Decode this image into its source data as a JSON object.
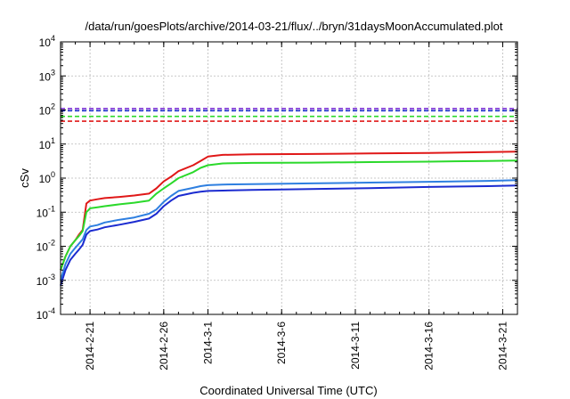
{
  "chart_data": {
    "type": "line",
    "title": "/data/run/goesPlots/archive/2014-03-21/flux/../bryn/31daysMoonAccumulated.plot",
    "xlabel": "Coordinated Universal Time (UTC)",
    "ylabel": "cSv",
    "yscale": "log",
    "ylim": [
      0.0001,
      10000
    ],
    "xlim": [
      "2014-02-19",
      "2014-03-22"
    ],
    "grid": true,
    "y_ticks": [
      {
        "base": "10",
        "exp": "-4",
        "value": 0.0001
      },
      {
        "base": "10",
        "exp": "-3",
        "value": 0.001
      },
      {
        "base": "10",
        "exp": "-2",
        "value": 0.01
      },
      {
        "base": "10",
        "exp": "-1",
        "value": 0.1
      },
      {
        "base": "10",
        "exp": "0",
        "value": 1
      },
      {
        "base": "10",
        "exp": "1",
        "value": 10
      },
      {
        "base": "10",
        "exp": "2",
        "value": 100
      },
      {
        "base": "10",
        "exp": "3",
        "value": 1000
      },
      {
        "base": "10",
        "exp": "4",
        "value": 10000
      }
    ],
    "x_ticks": [
      "2014-2-21",
      "2014-2-26",
      "2014-3-1",
      "2014-3-6",
      "2014-3-11",
      "2014-3-16",
      "2014-3-21"
    ],
    "x_tick_dates": [
      "2014-02-21",
      "2014-02-26",
      "2014-03-01",
      "2014-03-06",
      "2014-03-11",
      "2014-03-16",
      "2014-03-21"
    ],
    "thresholds": [
      {
        "color": "#7b2fd6",
        "value": 110
      },
      {
        "color": "#1b2bd0",
        "value": 95
      },
      {
        "color": "#2bd92b",
        "value": 65
      },
      {
        "color": "#e01818",
        "value": 47
      }
    ],
    "series": [
      {
        "color": "#e01818",
        "x": [
          "2014-02-19",
          "2014-02-19",
          "2014-02-19",
          "2014-02-20",
          "2014-02-20",
          "2014-02-20",
          "2014-02-20",
          "2014-02-21",
          "2014-02-21",
          "2014-02-22",
          "2014-02-23",
          "2014-02-24",
          "2014-02-25",
          "2014-02-25",
          "2014-02-26",
          "2014-02-26",
          "2014-02-27",
          "2014-02-28",
          "2014-02-28",
          "2014-03-01",
          "2014-03-02",
          "2014-03-04",
          "2014-03-08",
          "2014-03-12",
          "2014-03-16",
          "2014-03-20",
          "2014-03-22"
        ],
        "y": [
          0.002,
          0.005,
          0.01,
          0.015,
          0.022,
          0.03,
          0.18,
          0.22,
          0.24,
          0.26,
          0.28,
          0.31,
          0.35,
          0.5,
          0.8,
          1.1,
          1.6,
          2.4,
          3.2,
          4.3,
          4.8,
          5.0,
          5.1,
          5.3,
          5.5,
          5.8,
          6.0
        ]
      },
      {
        "color": "#2bd92b",
        "x": [
          "2014-02-19",
          "2014-02-19",
          "2014-02-19",
          "2014-02-20",
          "2014-02-20",
          "2014-02-20",
          "2014-02-20",
          "2014-02-21",
          "2014-02-21",
          "2014-02-22",
          "2014-02-23",
          "2014-02-24",
          "2014-02-25",
          "2014-02-25",
          "2014-02-26",
          "2014-02-26",
          "2014-02-27",
          "2014-02-28",
          "2014-02-28",
          "2014-03-01",
          "2014-03-02",
          "2014-03-04",
          "2014-03-08",
          "2014-03-12",
          "2014-03-16",
          "2014-03-20",
          "2014-03-22"
        ],
        "y": [
          0.002,
          0.005,
          0.01,
          0.015,
          0.02,
          0.028,
          0.1,
          0.13,
          0.14,
          0.15,
          0.17,
          0.19,
          0.22,
          0.35,
          0.5,
          0.7,
          1.0,
          1.5,
          2.0,
          2.4,
          2.7,
          2.8,
          2.85,
          2.95,
          3.05,
          3.2,
          3.3
        ]
      },
      {
        "color": "#2e7fe0",
        "x": [
          "2014-02-19",
          "2014-02-19",
          "2014-02-19",
          "2014-02-20",
          "2014-02-20",
          "2014-02-20",
          "2014-02-20",
          "2014-02-21",
          "2014-02-21",
          "2014-02-22",
          "2014-02-23",
          "2014-02-24",
          "2014-02-25",
          "2014-02-25",
          "2014-02-26",
          "2014-02-26",
          "2014-02-27",
          "2014-02-28",
          "2014-02-28",
          "2014-03-01",
          "2014-03-02",
          "2014-03-04",
          "2014-03-08",
          "2014-03-12",
          "2014-03-16",
          "2014-03-20",
          "2014-03-22"
        ],
        "y": [
          0.001,
          0.003,
          0.006,
          0.009,
          0.012,
          0.016,
          0.03,
          0.038,
          0.042,
          0.05,
          0.06,
          0.07,
          0.09,
          0.12,
          0.2,
          0.3,
          0.42,
          0.52,
          0.58,
          0.62,
          0.65,
          0.67,
          0.7,
          0.74,
          0.78,
          0.83,
          0.87
        ]
      },
      {
        "color": "#1b2bd0",
        "x": [
          "2014-02-19",
          "2014-02-19",
          "2014-02-19",
          "2014-02-20",
          "2014-02-20",
          "2014-02-20",
          "2014-02-20",
          "2014-02-21",
          "2014-02-21",
          "2014-02-22",
          "2014-02-23",
          "2014-02-24",
          "2014-02-25",
          "2014-02-25",
          "2014-02-26",
          "2014-02-26",
          "2014-02-27",
          "2014-02-28",
          "2014-02-28",
          "2014-03-01",
          "2014-03-02",
          "2014-03-04",
          "2014-03-08",
          "2014-03-12",
          "2014-03-16",
          "2014-03-20",
          "2014-03-22"
        ],
        "y": [
          0.0007,
          0.002,
          0.004,
          0.006,
          0.008,
          0.011,
          0.022,
          0.028,
          0.031,
          0.036,
          0.043,
          0.052,
          0.065,
          0.09,
          0.15,
          0.22,
          0.3,
          0.37,
          0.4,
          0.42,
          0.43,
          0.45,
          0.48,
          0.51,
          0.55,
          0.58,
          0.61
        ]
      }
    ]
  }
}
